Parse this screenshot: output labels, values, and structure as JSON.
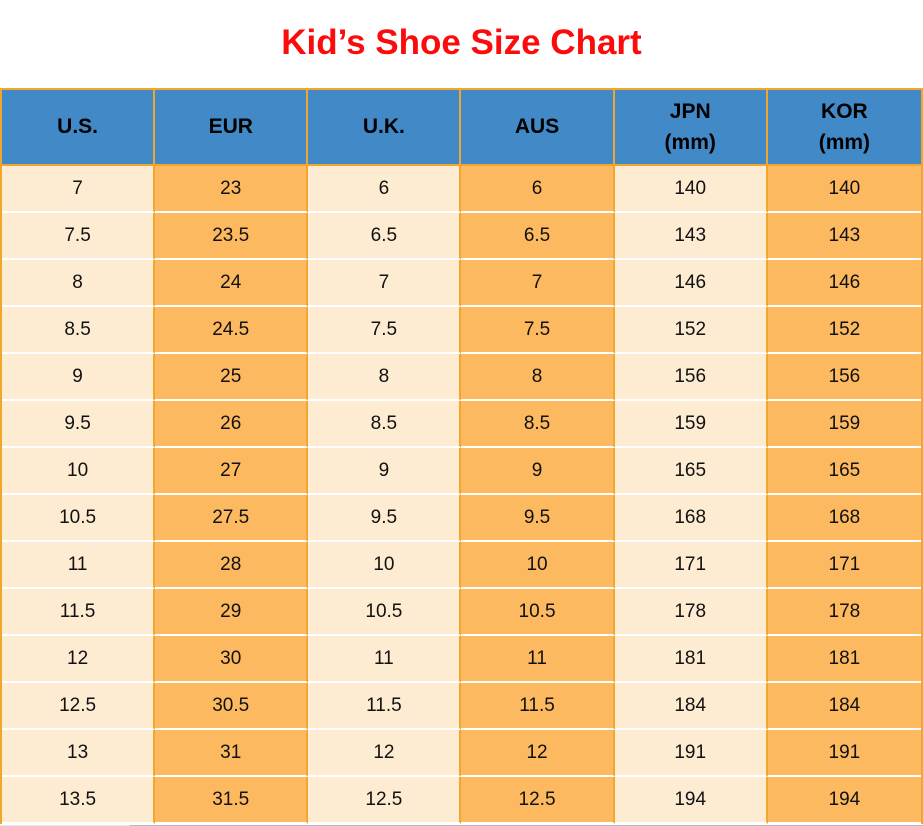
{
  "title": "Kid’s Shoe Size Chart",
  "colors": {
    "title_red": "#FB0B0B",
    "header_blue": "#4289C7",
    "cell_cream": "#FDEBD2",
    "cell_orange": "#FCB960",
    "border_orange": "#F2A62E",
    "row_divider": "#FFFFFF",
    "edge_left_gray": "#E7E7E7",
    "edge_right_gray": "#B3BAC1"
  },
  "table": {
    "headers": [
      {
        "label": "U.S.",
        "sub": ""
      },
      {
        "label": "EUR",
        "sub": ""
      },
      {
        "label": "U.K.",
        "sub": ""
      },
      {
        "label": "AUS",
        "sub": ""
      },
      {
        "label": "JPN",
        "sub": "(mm)"
      },
      {
        "label": "KOR",
        "sub": "(mm)"
      }
    ],
    "rows": [
      [
        "7",
        "23",
        "6",
        "6",
        "140",
        "140"
      ],
      [
        "7.5",
        "23.5",
        "6.5",
        "6.5",
        "143",
        "143"
      ],
      [
        "8",
        "24",
        "7",
        "7",
        "146",
        "146"
      ],
      [
        "8.5",
        "24.5",
        "7.5",
        "7.5",
        "152",
        "152"
      ],
      [
        "9",
        "25",
        "8",
        "8",
        "156",
        "156"
      ],
      [
        "9.5",
        "26",
        "8.5",
        "8.5",
        "159",
        "159"
      ],
      [
        "10",
        "27",
        "9",
        "9",
        "165",
        "165"
      ],
      [
        "10.5",
        "27.5",
        "9.5",
        "9.5",
        "168",
        "168"
      ],
      [
        "11",
        "28",
        "10",
        "10",
        "171",
        "171"
      ],
      [
        "11.5",
        "29",
        "10.5",
        "10.5",
        "178",
        "178"
      ],
      [
        "12",
        "30",
        "11",
        "11",
        "181",
        "181"
      ],
      [
        "12.5",
        "30.5",
        "11.5",
        "11.5",
        "184",
        "184"
      ],
      [
        "13",
        "31",
        "12",
        "12",
        "191",
        "191"
      ],
      [
        "13.5",
        "31.5",
        "12.5",
        "12.5",
        "194",
        "194"
      ]
    ]
  },
  "chart_data": {
    "type": "table",
    "title": "Kid’s Shoe Size Chart",
    "columns": [
      "U.S.",
      "EUR",
      "U.K.",
      "AUS",
      "JPN (mm)",
      "KOR (mm)"
    ],
    "rows": [
      [
        7,
        23,
        6,
        6,
        140,
        140
      ],
      [
        7.5,
        23.5,
        6.5,
        6.5,
        143,
        143
      ],
      [
        8,
        24,
        7,
        7,
        146,
        146
      ],
      [
        8.5,
        24.5,
        7.5,
        7.5,
        152,
        152
      ],
      [
        9,
        25,
        8,
        8,
        156,
        156
      ],
      [
        9.5,
        26,
        8.5,
        8.5,
        159,
        159
      ],
      [
        10,
        27,
        9,
        9,
        165,
        165
      ],
      [
        10.5,
        27.5,
        9.5,
        9.5,
        168,
        168
      ],
      [
        11,
        28,
        10,
        10,
        171,
        171
      ],
      [
        11.5,
        29,
        10.5,
        10.5,
        178,
        178
      ],
      [
        12,
        30,
        11,
        11,
        181,
        181
      ],
      [
        12.5,
        30.5,
        11.5,
        11.5,
        184,
        184
      ],
      [
        13,
        31,
        12,
        12,
        191,
        191
      ],
      [
        13.5,
        31.5,
        12.5,
        12.5,
        194,
        194
      ]
    ],
    "layout": {
      "header_fill": "#4289C7",
      "odd_column_fill": "#FDEBD2",
      "even_column_fill": "#FCB960",
      "grid": true,
      "title_color": "#FB0B0B"
    }
  }
}
